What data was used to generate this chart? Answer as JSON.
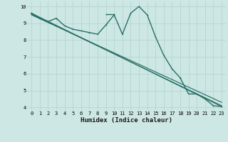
{
  "xlabel": "Humidex (Indice chaleur)",
  "x": [
    0,
    1,
    2,
    3,
    4,
    5,
    6,
    7,
    8,
    9,
    10,
    11,
    12,
    13,
    14,
    15,
    16,
    17,
    18,
    19,
    20,
    21,
    22,
    23
  ],
  "line1_y": [
    9.6,
    9.3,
    9.1,
    9.3,
    8.85,
    8.65,
    8.55,
    8.45,
    8.35,
    8.9,
    9.5,
    8.35,
    9.6,
    10.0,
    9.5,
    8.2,
    7.1,
    6.3,
    5.75,
    null,
    null,
    null,
    null,
    null
  ],
  "line2_y": [
    9.6,
    9.3,
    null,
    9.3,
    null,
    null,
    null,
    null,
    null,
    9.55,
    9.55,
    null,
    null,
    null,
    null,
    null,
    null,
    null,
    null,
    null,
    null,
    null,
    null,
    null
  ],
  "line3_y": [
    9.6,
    null,
    null,
    null,
    null,
    null,
    null,
    null,
    null,
    null,
    null,
    null,
    null,
    null,
    null,
    null,
    null,
    null,
    5.75,
    4.8,
    4.8,
    4.5,
    4.1,
    4.05
  ],
  "diag_lines": [
    [
      9.6,
      4.05
    ],
    [
      9.55,
      4.1
    ],
    [
      9.5,
      4.3
    ]
  ],
  "ylim": [
    3.8,
    10.3
  ],
  "xlim": [
    -0.5,
    23.5
  ],
  "bg_color": "#cde8e4",
  "grid_color": "#b0d0cc",
  "line_color": "#2a6e68",
  "line_width": 1.0,
  "marker_size": 2.0,
  "tick_fontsize": 5.0,
  "label_fontsize": 6.5
}
